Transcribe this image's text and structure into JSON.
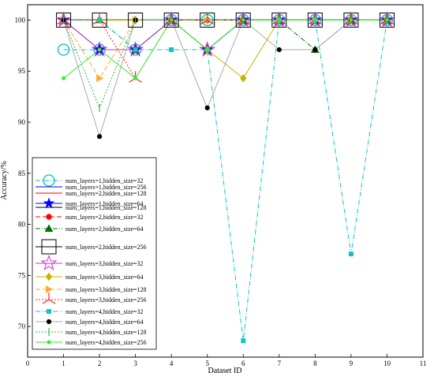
{
  "chart_data": {
    "type": "line",
    "title": "",
    "xlabel": "Dataset ID",
    "ylabel": "Accuracy/%",
    "xlim": [
      0,
      11
    ],
    "ylim": [
      67,
      101.5
    ],
    "x_ticks": [
      0,
      1,
      2,
      3,
      4,
      5,
      6,
      7,
      8,
      9,
      10,
      11
    ],
    "y_ticks": [
      70,
      75,
      80,
      85,
      90,
      95,
      100
    ],
    "grid": false,
    "legend_position": "left",
    "x": [
      1,
      2,
      3,
      4,
      5,
      6,
      7,
      8,
      9,
      10
    ],
    "series": [
      {
        "name": "num_layers=1,hidden_size=32",
        "color": "#00c0c0",
        "dash": "6,2,1,2",
        "marker": "circle-open-large",
        "values": [
          97.1,
          97.1,
          97.1,
          100,
          100,
          100,
          100,
          100,
          100,
          100
        ]
      },
      {
        "name": "num_layers=1,hidden_size=256",
        "color": "#0000ff",
        "dash": "",
        "marker": "none",
        "values": [
          100,
          100,
          100,
          100,
          100,
          100,
          100,
          100,
          100,
          100
        ]
      },
      {
        "name": "num_layers=2,hidden_size=128",
        "color": "#ff0000",
        "dash": "",
        "marker": "none",
        "values": [
          100,
          100,
          100,
          100,
          100,
          100,
          100,
          100,
          100,
          100
        ]
      },
      {
        "name": "num_layers=1,hidden_size=64",
        "color": "#0000ff",
        "dash": "",
        "marker": "star",
        "values": [
          100,
          97.1,
          97.1,
          100,
          97.1,
          100,
          100,
          100,
          100,
          100
        ]
      },
      {
        "name": "num_layers=1,hidden_size=128",
        "color": "#000000",
        "dash": "",
        "marker": "none",
        "values": [
          100,
          100,
          100,
          100,
          100,
          100,
          100,
          100,
          100,
          100
        ]
      },
      {
        "name": "num_layers=2,hidden_size=32",
        "color": "#ff0000",
        "dash": "6,3",
        "marker": "circle",
        "values": [
          100,
          100,
          100,
          100,
          100,
          100,
          100,
          100,
          100,
          100
        ]
      },
      {
        "name": "num_layers=2,hidden_size=64",
        "color": "#007000",
        "dash": "6,2,1,2",
        "marker": "triangle",
        "values": [
          100,
          100,
          97.1,
          100,
          97.1,
          100,
          100,
          97.1,
          100,
          100
        ]
      },
      {
        "name": "num_layers=2,hidden_size=256",
        "color": "#000000",
        "dash": "",
        "marker": "square-open-large",
        "values": [
          100,
          100,
          100,
          100,
          100,
          100,
          100,
          100,
          100,
          100
        ]
      },
      {
        "name": "num_layers=3,hidden_size=32",
        "color": "#cc33cc",
        "dash": "",
        "marker": "star-open-large",
        "values": [
          100,
          97.1,
          97.1,
          100,
          97.1,
          100,
          100,
          100,
          100,
          100
        ]
      },
      {
        "name": "num_layers=3,hidden_size=64",
        "color": "#c8b400",
        "dash": "",
        "marker": "diamond",
        "values": [
          100,
          100,
          100,
          100,
          97.1,
          94.3,
          100,
          100,
          100,
          100
        ]
      },
      {
        "name": "num_layers=3,hidden_size=128",
        "color": "#ffaa33",
        "dash": "6,3",
        "marker": "triangle-right",
        "values": [
          100,
          94.3,
          100,
          100,
          100,
          100,
          100,
          100,
          100,
          100
        ]
      },
      {
        "name": "num_layers=3,hidden_size=256",
        "color": "#ff2222",
        "dash": "2,2",
        "marker": "tri-large",
        "values": [
          100,
          100,
          94.3,
          100,
          100,
          100,
          100,
          100,
          100,
          100
        ]
      },
      {
        "name": "num_layers=4,hidden_size=32",
        "color": "#11c4c4",
        "dash": "6,2,1,2",
        "marker": "square",
        "values": [
          100,
          100,
          97.1,
          97.1,
          97.1,
          68.6,
          100,
          100,
          77.1,
          100
        ]
      },
      {
        "name": "num_layers=4,hidden_size=64",
        "color": "#aaaaaa",
        "dash": "",
        "marker": "circle-black",
        "values": [
          100,
          88.6,
          100,
          100,
          91.4,
          100,
          97.1,
          97.1,
          100,
          100
        ]
      },
      {
        "name": "num_layers=4,hidden_size=128",
        "color": "#22bb44",
        "dash": "2,2",
        "marker": "vline",
        "values": [
          100,
          91.4,
          100,
          100,
          100,
          100,
          100,
          100,
          100,
          100
        ]
      },
      {
        "name": "num_layers=4,hidden_size=256",
        "color": "#33ee33",
        "dash": "",
        "marker": "circle-small",
        "values": [
          94.3,
          97.1,
          94.3,
          100,
          97.1,
          100,
          100,
          100,
          100,
          100
        ]
      }
    ]
  }
}
